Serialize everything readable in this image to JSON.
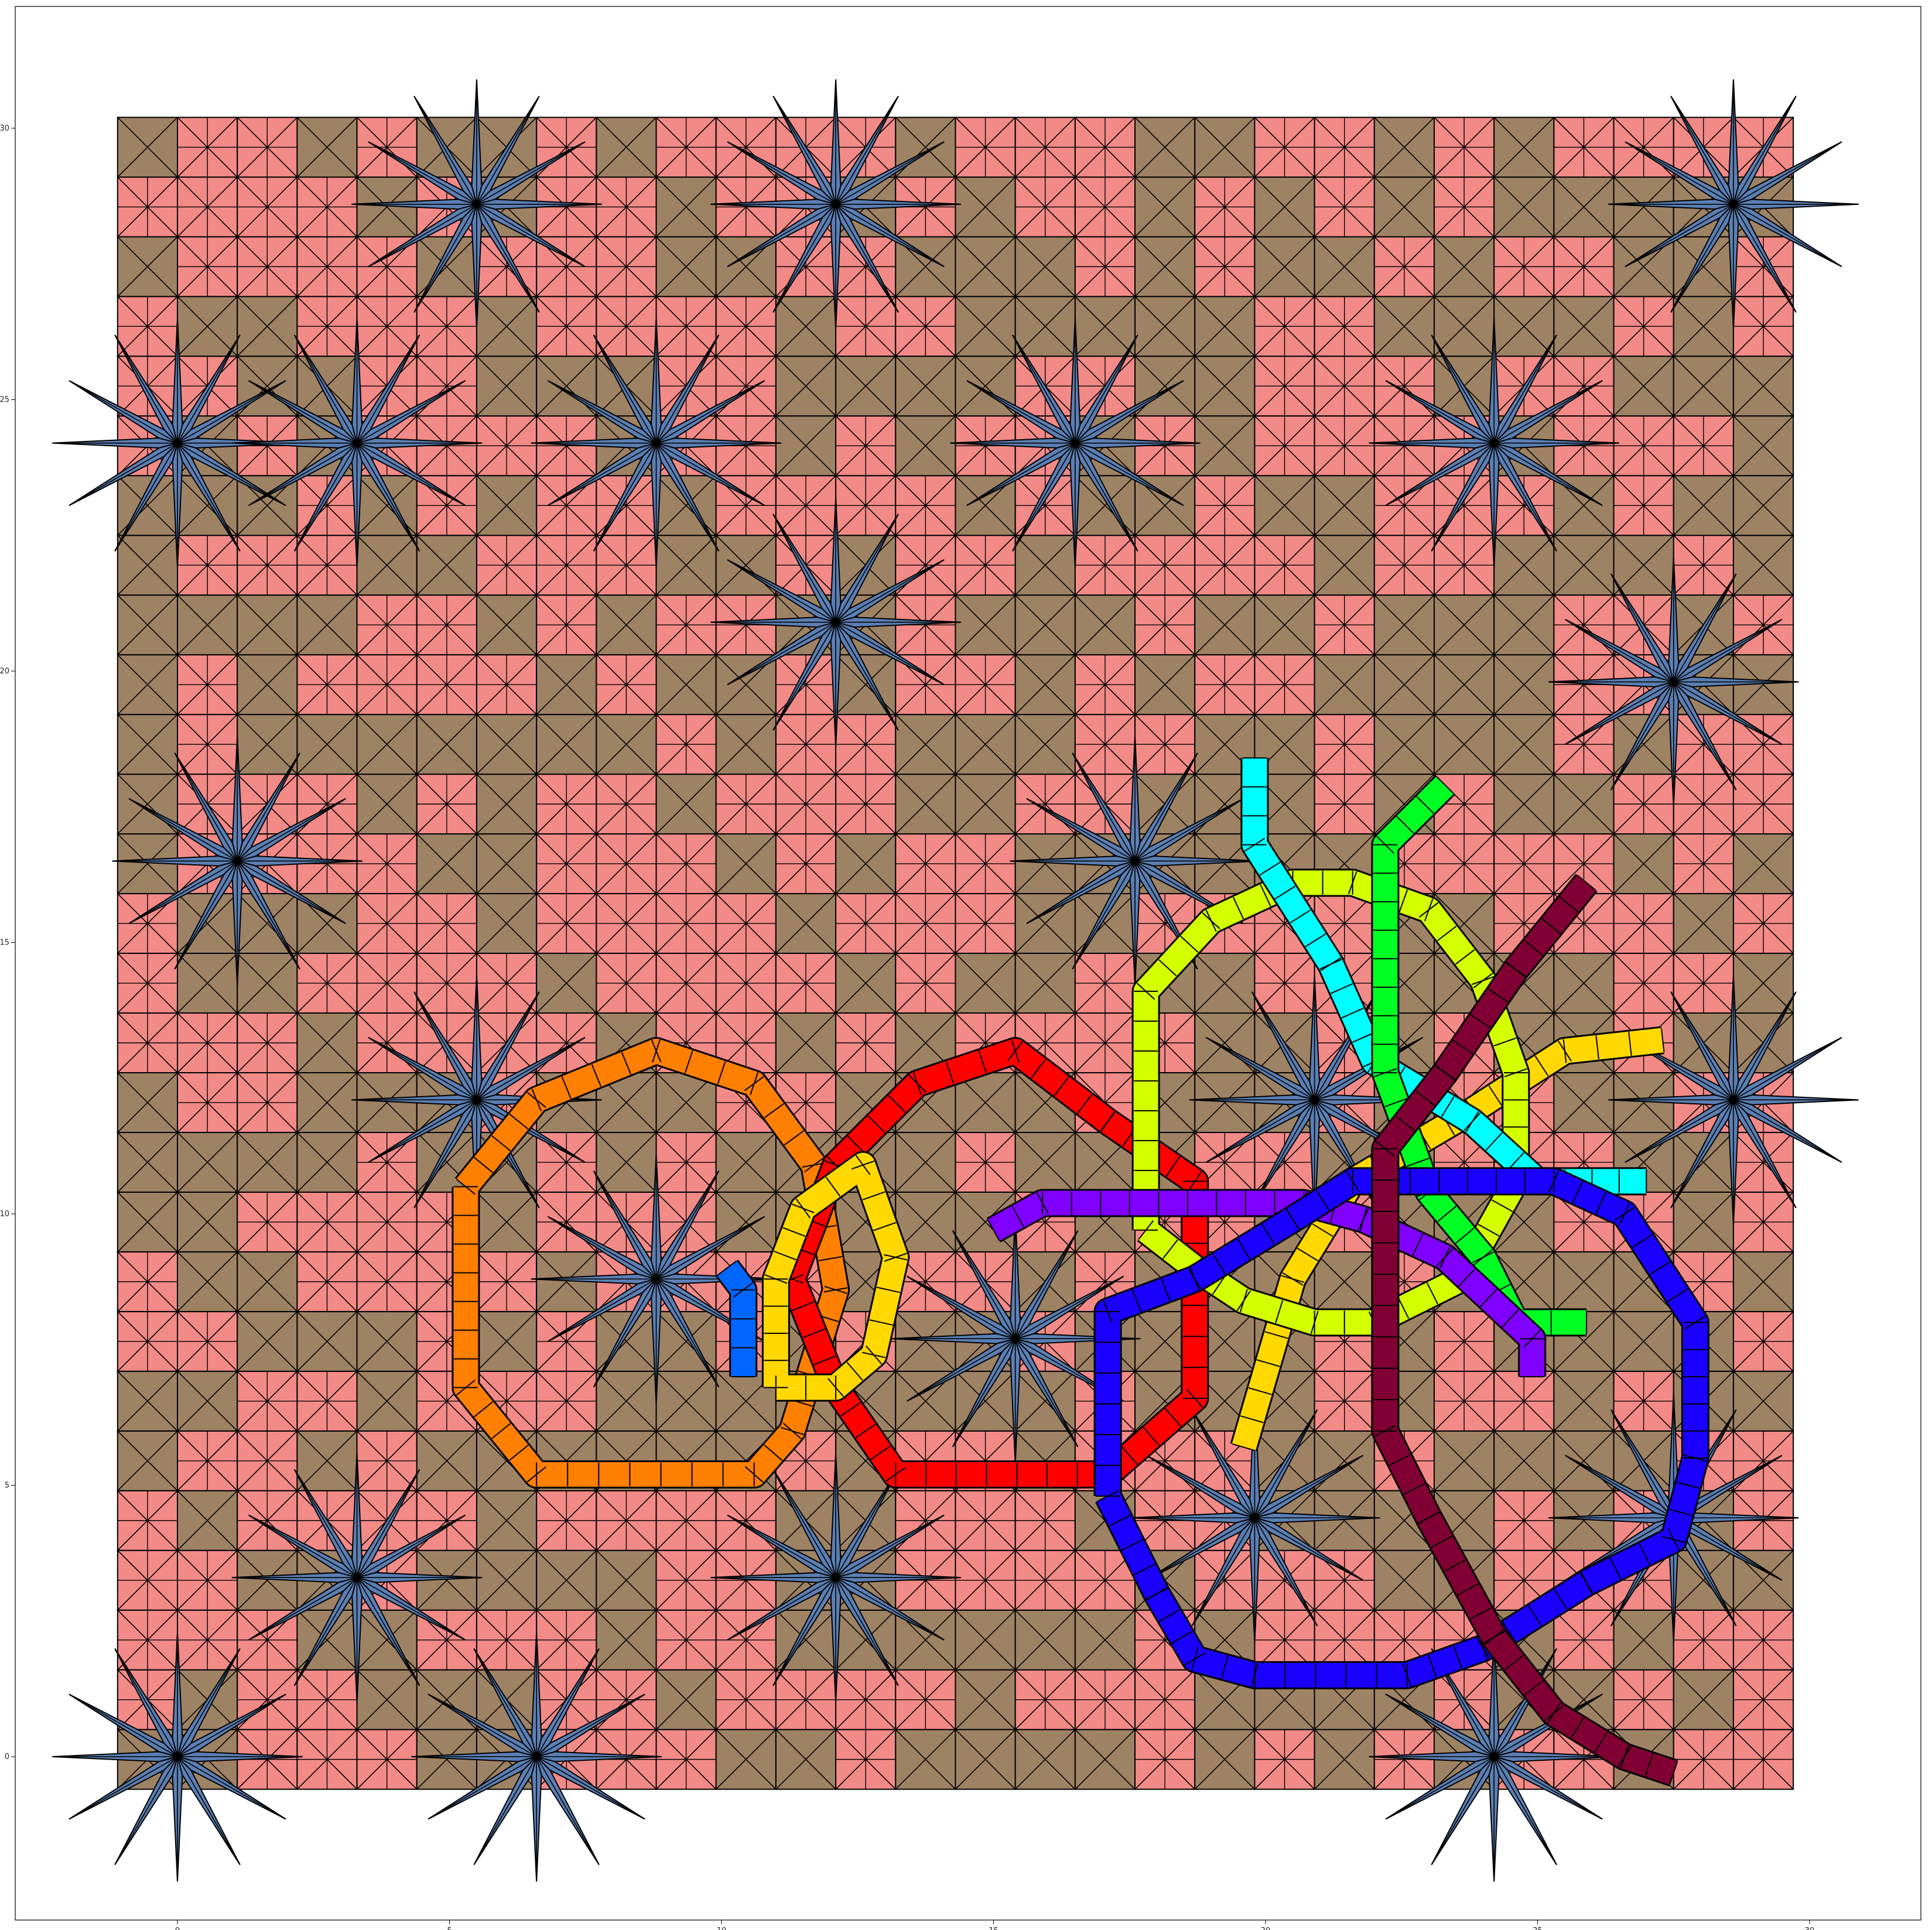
{
  "figure": {
    "kind": "quasiperiodic tiling with colored worm paths",
    "palette": {
      "background": "#ffffff",
      "tile_rhomb": "#f28a87",
      "tile_square": "#9e8264",
      "tile_star": "#5b7fb4",
      "edge": "#000000"
    }
  },
  "chart_data": {
    "type": "scatter",
    "title": "",
    "xlabel": "",
    "ylabel": "",
    "xlim": [
      -2.7,
      32.3
    ],
    "ylim": [
      -3.0,
      32.0
    ],
    "x_ticks": [
      "0",
      "5",
      "10",
      "15",
      "20",
      "25",
      "30"
    ],
    "y_ticks": [
      "0",
      "5",
      "10",
      "15",
      "20",
      "25",
      "30"
    ],
    "grid": false,
    "legend": "none",
    "star_centers": [
      {
        "x": 0,
        "y": 24.2
      },
      {
        "x": 12.1,
        "y": 20.9
      },
      {
        "x": 5.5,
        "y": 12.1
      },
      {
        "x": 3.3,
        "y": 24.2
      },
      {
        "x": 8.8,
        "y": 24.2
      },
      {
        "x": 16.5,
        "y": 24.2
      },
      {
        "x": 24.2,
        "y": 24.2
      },
      {
        "x": 20.9,
        "y": 12.1
      },
      {
        "x": 8.8,
        "y": 8.8
      },
      {
        "x": 12.1,
        "y": 3.3
      },
      {
        "x": 24.2,
        "y": 0
      },
      {
        "x": 0,
        "y": 0
      },
      {
        "x": 3.3,
        "y": 3.3
      },
      {
        "x": 5.5,
        "y": 28.6
      },
      {
        "x": 12.1,
        "y": 28.6
      },
      {
        "x": 28.6,
        "y": 28.6
      },
      {
        "x": 28.6,
        "y": 12.1
      },
      {
        "x": 17.6,
        "y": 16.5
      },
      {
        "x": 27.5,
        "y": 19.8
      },
      {
        "x": 1.1,
        "y": 16.5
      },
      {
        "x": 15.4,
        "y": 7.7
      },
      {
        "x": 19.8,
        "y": 4.4
      },
      {
        "x": 6.6,
        "y": 0
      },
      {
        "x": 27.5,
        "y": 4.4
      }
    ],
    "paths": [
      {
        "color": "#ff7f00",
        "points": [
          [
            5.3,
            10.5
          ],
          [
            5.3,
            6.8
          ],
          [
            6.6,
            5.2
          ],
          [
            10.6,
            5.2
          ],
          [
            11.3,
            6.0
          ],
          [
            12.1,
            8.6
          ],
          [
            11.7,
            10.9
          ],
          [
            10.6,
            12.4
          ],
          [
            8.8,
            13.0
          ],
          [
            6.6,
            12.1
          ],
          [
            5.3,
            10.5
          ]
        ]
      },
      {
        "color": "#ff0000",
        "points": [
          [
            11.3,
            8.8
          ],
          [
            12.1,
            6.8
          ],
          [
            13.2,
            5.2
          ],
          [
            17.1,
            5.2
          ],
          [
            18.7,
            6.6
          ],
          [
            18.7,
            10.6
          ],
          [
            17.1,
            11.7
          ],
          [
            15.4,
            13.0
          ],
          [
            13.6,
            12.4
          ],
          [
            12.1,
            10.9
          ],
          [
            11.3,
            8.8
          ]
        ]
      },
      {
        "color": "#ffd800",
        "points": [
          [
            11.0,
            6.8
          ],
          [
            11.0,
            8.8
          ],
          [
            11.5,
            10.1
          ],
          [
            12.6,
            10.9
          ],
          [
            13.2,
            9.2
          ],
          [
            12.8,
            7.4
          ],
          [
            12.1,
            6.8
          ],
          [
            11.0,
            6.8
          ]
        ]
      },
      {
        "color": "#ffd800",
        "points": [
          [
            19.6,
            5.7
          ],
          [
            20.5,
            8.8
          ],
          [
            21.6,
            10.6
          ],
          [
            23.8,
            11.9
          ],
          [
            25.5,
            13.0
          ],
          [
            27.3,
            13.2
          ]
        ]
      },
      {
        "color": "#0066ff",
        "points": [
          [
            10.1,
            9.0
          ],
          [
            10.4,
            8.6
          ],
          [
            10.4,
            7.0
          ]
        ]
      },
      {
        "color": "#d4ff00",
        "points": [
          [
            17.8,
            9.7
          ],
          [
            17.8,
            14.1
          ],
          [
            19.0,
            15.4
          ],
          [
            20.5,
            16.1
          ],
          [
            21.6,
            16.1
          ],
          [
            23.0,
            15.6
          ],
          [
            24.0,
            14.3
          ],
          [
            24.6,
            12.6
          ],
          [
            24.6,
            10.6
          ],
          [
            23.6,
            8.8
          ],
          [
            22.0,
            8.0
          ],
          [
            20.9,
            8.0
          ],
          [
            19.6,
            8.4
          ],
          [
            18.7,
            9.0
          ],
          [
            17.8,
            9.7
          ]
        ]
      },
      {
        "color": "#00ffff",
        "points": [
          [
            19.8,
            18.4
          ],
          [
            19.8,
            16.8
          ],
          [
            21.2,
            14.6
          ],
          [
            22.0,
            12.8
          ],
          [
            23.8,
            11.7
          ],
          [
            25.0,
            10.6
          ],
          [
            27.0,
            10.6
          ]
        ]
      },
      {
        "color": "#00ff22",
        "points": [
          [
            23.3,
            17.9
          ],
          [
            22.2,
            16.8
          ],
          [
            22.2,
            12.6
          ],
          [
            23.0,
            10.4
          ],
          [
            24.0,
            9.2
          ],
          [
            24.6,
            8.0
          ],
          [
            25.9,
            8.0
          ]
        ]
      },
      {
        "color": "#8000ff",
        "points": [
          [
            15.0,
            9.7
          ],
          [
            15.9,
            10.2
          ],
          [
            20.7,
            10.2
          ],
          [
            21.8,
            9.9
          ],
          [
            23.3,
            9.2
          ],
          [
            24.9,
            7.7
          ],
          [
            24.9,
            7.0
          ]
        ]
      },
      {
        "color": "#1a00ff",
        "points": [
          [
            17.1,
            4.8
          ],
          [
            18.0,
            3.0
          ],
          [
            18.7,
            1.8
          ],
          [
            19.8,
            1.5
          ],
          [
            22.6,
            1.5
          ],
          [
            24.0,
            2.0
          ],
          [
            25.9,
            3.2
          ],
          [
            27.5,
            4.0
          ],
          [
            27.9,
            5.5
          ],
          [
            27.9,
            8.0
          ],
          [
            26.6,
            10.0
          ],
          [
            25.3,
            10.6
          ],
          [
            21.6,
            10.6
          ],
          [
            20.5,
            9.9
          ],
          [
            18.7,
            8.8
          ],
          [
            17.1,
            8.2
          ],
          [
            17.1,
            4.8
          ]
        ]
      },
      {
        "color": "#800033",
        "points": [
          [
            25.9,
            16.1
          ],
          [
            24.6,
            14.5
          ],
          [
            23.3,
            12.6
          ],
          [
            22.2,
            11.2
          ],
          [
            22.2,
            6.0
          ],
          [
            23.0,
            4.4
          ],
          [
            24.2,
            2.2
          ],
          [
            25.3,
            0.8
          ],
          [
            26.6,
            0.0
          ],
          [
            27.5,
            -0.3
          ]
        ]
      }
    ]
  }
}
